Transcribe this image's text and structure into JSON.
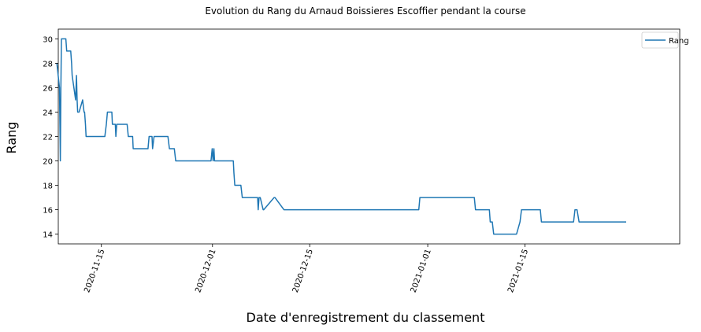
{
  "chart_data": {
    "type": "line",
    "title": "Evolution du Rang du Arnaud Boissieres Escoffier pendant la course",
    "xlabel": "Date d'enregistrement du classement",
    "ylabel": "Rang",
    "xlim": [
      "2020-11-08T19:00",
      "2021-02-06T07:00"
    ],
    "ylim": [
      13.2,
      30.8
    ],
    "yticks": [
      14,
      16,
      18,
      20,
      22,
      24,
      26,
      28,
      30
    ],
    "xticks": [
      "2020-11-15",
      "2020-12-01",
      "2020-12-15",
      "2021-01-01",
      "2021-01-15"
    ],
    "grid": false,
    "legend": {
      "position": "top-right",
      "entries": [
        "Rang"
      ]
    },
    "colors": {
      "line": "#1f77b4",
      "axes": "#000000"
    },
    "series": [
      {
        "name": "Rang",
        "x": [
          "2020-11-08T14:00",
          "2020-11-08T23:00",
          "2020-11-09T02:00",
          "2020-11-09T04:00",
          "2020-11-09T06:00",
          "2020-11-09T21:00",
          "2020-11-10T00:00",
          "2020-11-10T14:00",
          "2020-11-10T17:00",
          "2020-11-10T19:00",
          "2020-11-11T07:00",
          "2020-11-11T10:00",
          "2020-11-11T12:00",
          "2020-11-11T14:00",
          "2020-11-11T16:00",
          "2020-11-11T19:00",
          "2020-11-12T07:00",
          "2020-11-12T12:00",
          "2020-11-12T14:00",
          "2020-11-12T17:00",
          "2020-11-12T19:00",
          "2020-11-13T00:00",
          "2020-11-15T12:00",
          "2020-11-15T17:00",
          "2020-11-15T21:00",
          "2020-11-16T12:00",
          "2020-11-16T14:00",
          "2020-11-17T00:00",
          "2020-11-17T02:00",
          "2020-11-17T05:00",
          "2020-11-17T07:00",
          "2020-11-18T17:00",
          "2020-11-18T21:00",
          "2020-11-19T12:00",
          "2020-11-19T14:00",
          "2020-11-21T17:00",
          "2020-11-21T21:00",
          "2020-11-22T07:00",
          "2020-11-22T09:00",
          "2020-11-22T14:00",
          "2020-11-22T19:00",
          "2020-11-23T00:00",
          "2020-11-24T14:00",
          "2020-11-24T19:00",
          "2020-11-25T12:00",
          "2020-11-25T17:00",
          "2020-11-30T19:00",
          "2020-11-30T23:00",
          "2020-12-01T02:00",
          "2020-12-01T05:00",
          "2020-12-01T07:00",
          "2020-12-01T10:00",
          "2020-12-04T00:00",
          "2020-12-04T02:00",
          "2020-12-04T05:00",
          "2020-12-04T07:00",
          "2020-12-05T02:00",
          "2020-12-05T07:00",
          "2020-12-07T12:00",
          "2020-12-07T14:00",
          "2020-12-07T17:00",
          "2020-12-07T21:00",
          "2020-12-08T07:00",
          "2020-12-08T09:00",
          "2020-12-09T21:00",
          "2020-12-10T00:00",
          "2020-12-11T07:00",
          "2020-12-11T12:00",
          "2020-12-30T17:00",
          "2020-12-30T21:00",
          "2021-01-07T17:00",
          "2021-01-07T21:00",
          "2021-01-09T21:00",
          "2021-01-10T00:00",
          "2021-01-10T07:00",
          "2021-01-10T12:00",
          "2021-01-13T19:00",
          "2021-01-14T07:00",
          "2021-01-14T12:00",
          "2021-01-17T05:00",
          "2021-01-17T09:00",
          "2021-01-22T00:00",
          "2021-01-22T05:00",
          "2021-01-22T12:00",
          "2021-01-22T19:00",
          "2021-01-29T14:00"
        ],
        "values": [
          28,
          26,
          20,
          26,
          30,
          30,
          29,
          29,
          28,
          27,
          25,
          27,
          25,
          24,
          24,
          24,
          25,
          24,
          24,
          23,
          22,
          22,
          22,
          23,
          24,
          24,
          23,
          23,
          22,
          23,
          23,
          23,
          22,
          22,
          21,
          21,
          22,
          22,
          21,
          22,
          22,
          22,
          22,
          21,
          21,
          20,
          20,
          21,
          20,
          21,
          20,
          20,
          20,
          19,
          18,
          18,
          18,
          17,
          17,
          16,
          17,
          17,
          16,
          16,
          17,
          17,
          16,
          16,
          16,
          17,
          17,
          16,
          16,
          15,
          15,
          14,
          14,
          15,
          16,
          16,
          15,
          15,
          16,
          16,
          15,
          15
        ]
      }
    ]
  }
}
